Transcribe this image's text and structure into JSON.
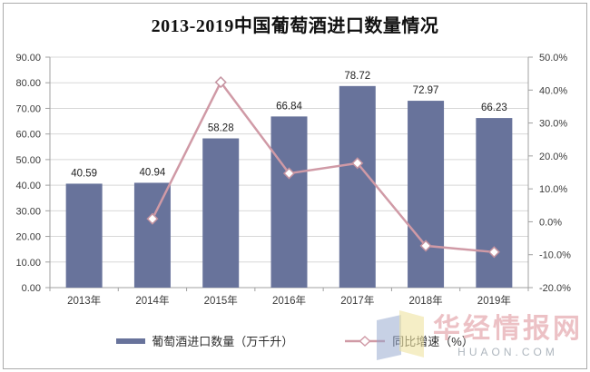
{
  "title": "2013-2019中国葡萄酒进口数量情况",
  "chart_data": {
    "type": "bar",
    "combo": "bar+line",
    "title": "2013-2019中国葡萄酒进口数量情况",
    "categories": [
      "2013年",
      "2014年",
      "2015年",
      "2016年",
      "2017年",
      "2018年",
      "2019年"
    ],
    "series": [
      {
        "name": "葡萄酒进口数量（万千升）",
        "type": "bar",
        "axis": "left",
        "values": [
          40.59,
          40.94,
          58.28,
          66.84,
          78.72,
          72.97,
          66.23
        ],
        "labels": [
          "40.59",
          "40.94",
          "58.28",
          "66.84",
          "78.72",
          "72.97",
          "66.23"
        ],
        "color": "#68739B"
      },
      {
        "name": "同比增速（%）",
        "type": "line",
        "axis": "right",
        "values": [
          null,
          0.9,
          42.4,
          14.7,
          17.8,
          -7.3,
          -9.2
        ],
        "color": "#D09AA6",
        "marker": "diamond",
        "marker_fill": "#FFFFFF",
        "marker_stroke": "#C493A0"
      }
    ],
    "left_axis": {
      "min": 0,
      "max": 90,
      "step": 10,
      "ticks": [
        "0.00",
        "10.00",
        "20.00",
        "30.00",
        "40.00",
        "50.00",
        "60.00",
        "70.00",
        "80.00",
        "90.00"
      ]
    },
    "right_axis": {
      "min": -20,
      "max": 50,
      "step": 10,
      "ticks": [
        "-20.0%",
        "-10.0%",
        "0.0%",
        "10.0%",
        "20.0%",
        "30.0%",
        "40.0%",
        "50.0%"
      ]
    },
    "grid": true,
    "legend_position": "bottom"
  },
  "legend": {
    "items": [
      {
        "label": "葡萄酒进口数量（万千升）",
        "marker": "bar-swatch",
        "color": "#68739B"
      },
      {
        "label": "同比增速（%）",
        "marker": "line-diamond",
        "color": "#D09AA6"
      }
    ]
  },
  "watermark": {
    "brand": "华经情报网",
    "domain": "HUAON.COM",
    "logo": "open-book-logo",
    "brand_color": "#E9B7BC",
    "domain_color": "#AEB6BE",
    "logo_colors": [
      "#8FA3CC",
      "#EFE2A0"
    ]
  },
  "colors": {
    "bar": "#68739B",
    "line": "#D09AA6",
    "grid": "#D8D8D8",
    "axis": "#A0A0A0",
    "text": "#3A3A3A",
    "border": "#ABABAB",
    "background": "#FFFFFF"
  }
}
